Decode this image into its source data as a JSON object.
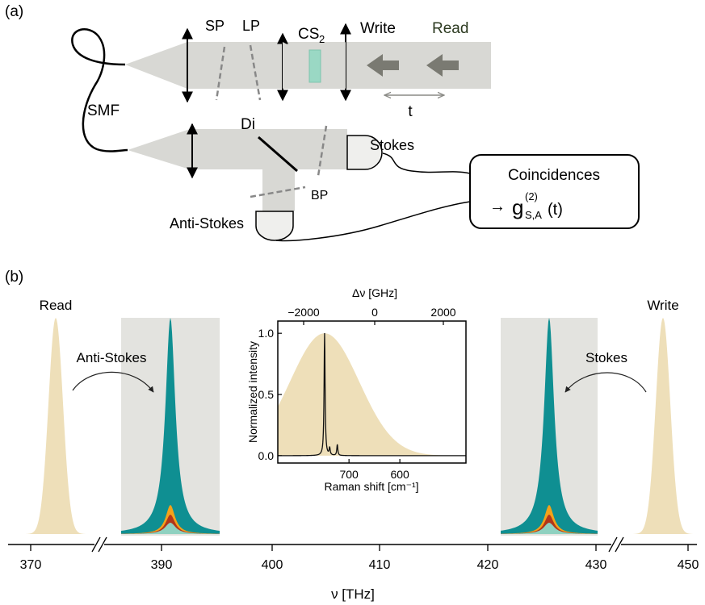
{
  "panel_a": {
    "label": "(a)",
    "sp": "SP",
    "lp": "LP",
    "cs_base": "CS",
    "cs_sub": "2",
    "write": "Write",
    "read": "Read",
    "t": "t",
    "smf": "SMF",
    "di": "Di",
    "stokes": "Stokes",
    "bp": "BP",
    "anti_stokes": "Anti-Stokes",
    "coincidences": "Coincidences",
    "arrow": "→",
    "g_base": "g",
    "g_sup": "(2)",
    "g_sub": "S,A",
    "g_arg": "(t)"
  },
  "panel_b": {
    "label": "(b)",
    "read": "Read",
    "write": "Write",
    "anti_stokes": "Anti-Stokes",
    "stokes": "Stokes",
    "xlabel": "ν [THz]",
    "xticks": [
      "370",
      "390",
      "400",
      "410",
      "420",
      "430",
      "450"
    ]
  },
  "chart_data": {
    "type": "line",
    "title": "",
    "xlabel": "Raman shift [cm⁻¹]",
    "ylabel": "Normalized intensity",
    "top_xlabel": "Δν [GHz]",
    "x_reversed": true,
    "xlim": [
      840,
      470
    ],
    "ylim": [
      -0.06,
      1.1
    ],
    "xticks": [
      "700",
      "600"
    ],
    "yticks": [
      "0.0",
      "0.5",
      "1.0"
    ],
    "top_xticks": [
      "−2000",
      "0",
      "2000"
    ],
    "broad_peak": {
      "center": 748,
      "fwhm": 160,
      "height": 1.0
    },
    "raman_lines": [
      {
        "x": 748,
        "y": 1.0
      },
      {
        "x": 738,
        "y": 0.06
      },
      {
        "x": 723,
        "y": 0.09
      }
    ]
  },
  "colors": {
    "teal": "#0f8f92",
    "orange": "#f3a21a",
    "red": "#b2361a",
    "mint": "#8fd1c0",
    "beige": "#eedfb9",
    "gray_box": "#e3e3df",
    "beam": "#d8d8d4",
    "cs2": "#9ad8c4"
  }
}
